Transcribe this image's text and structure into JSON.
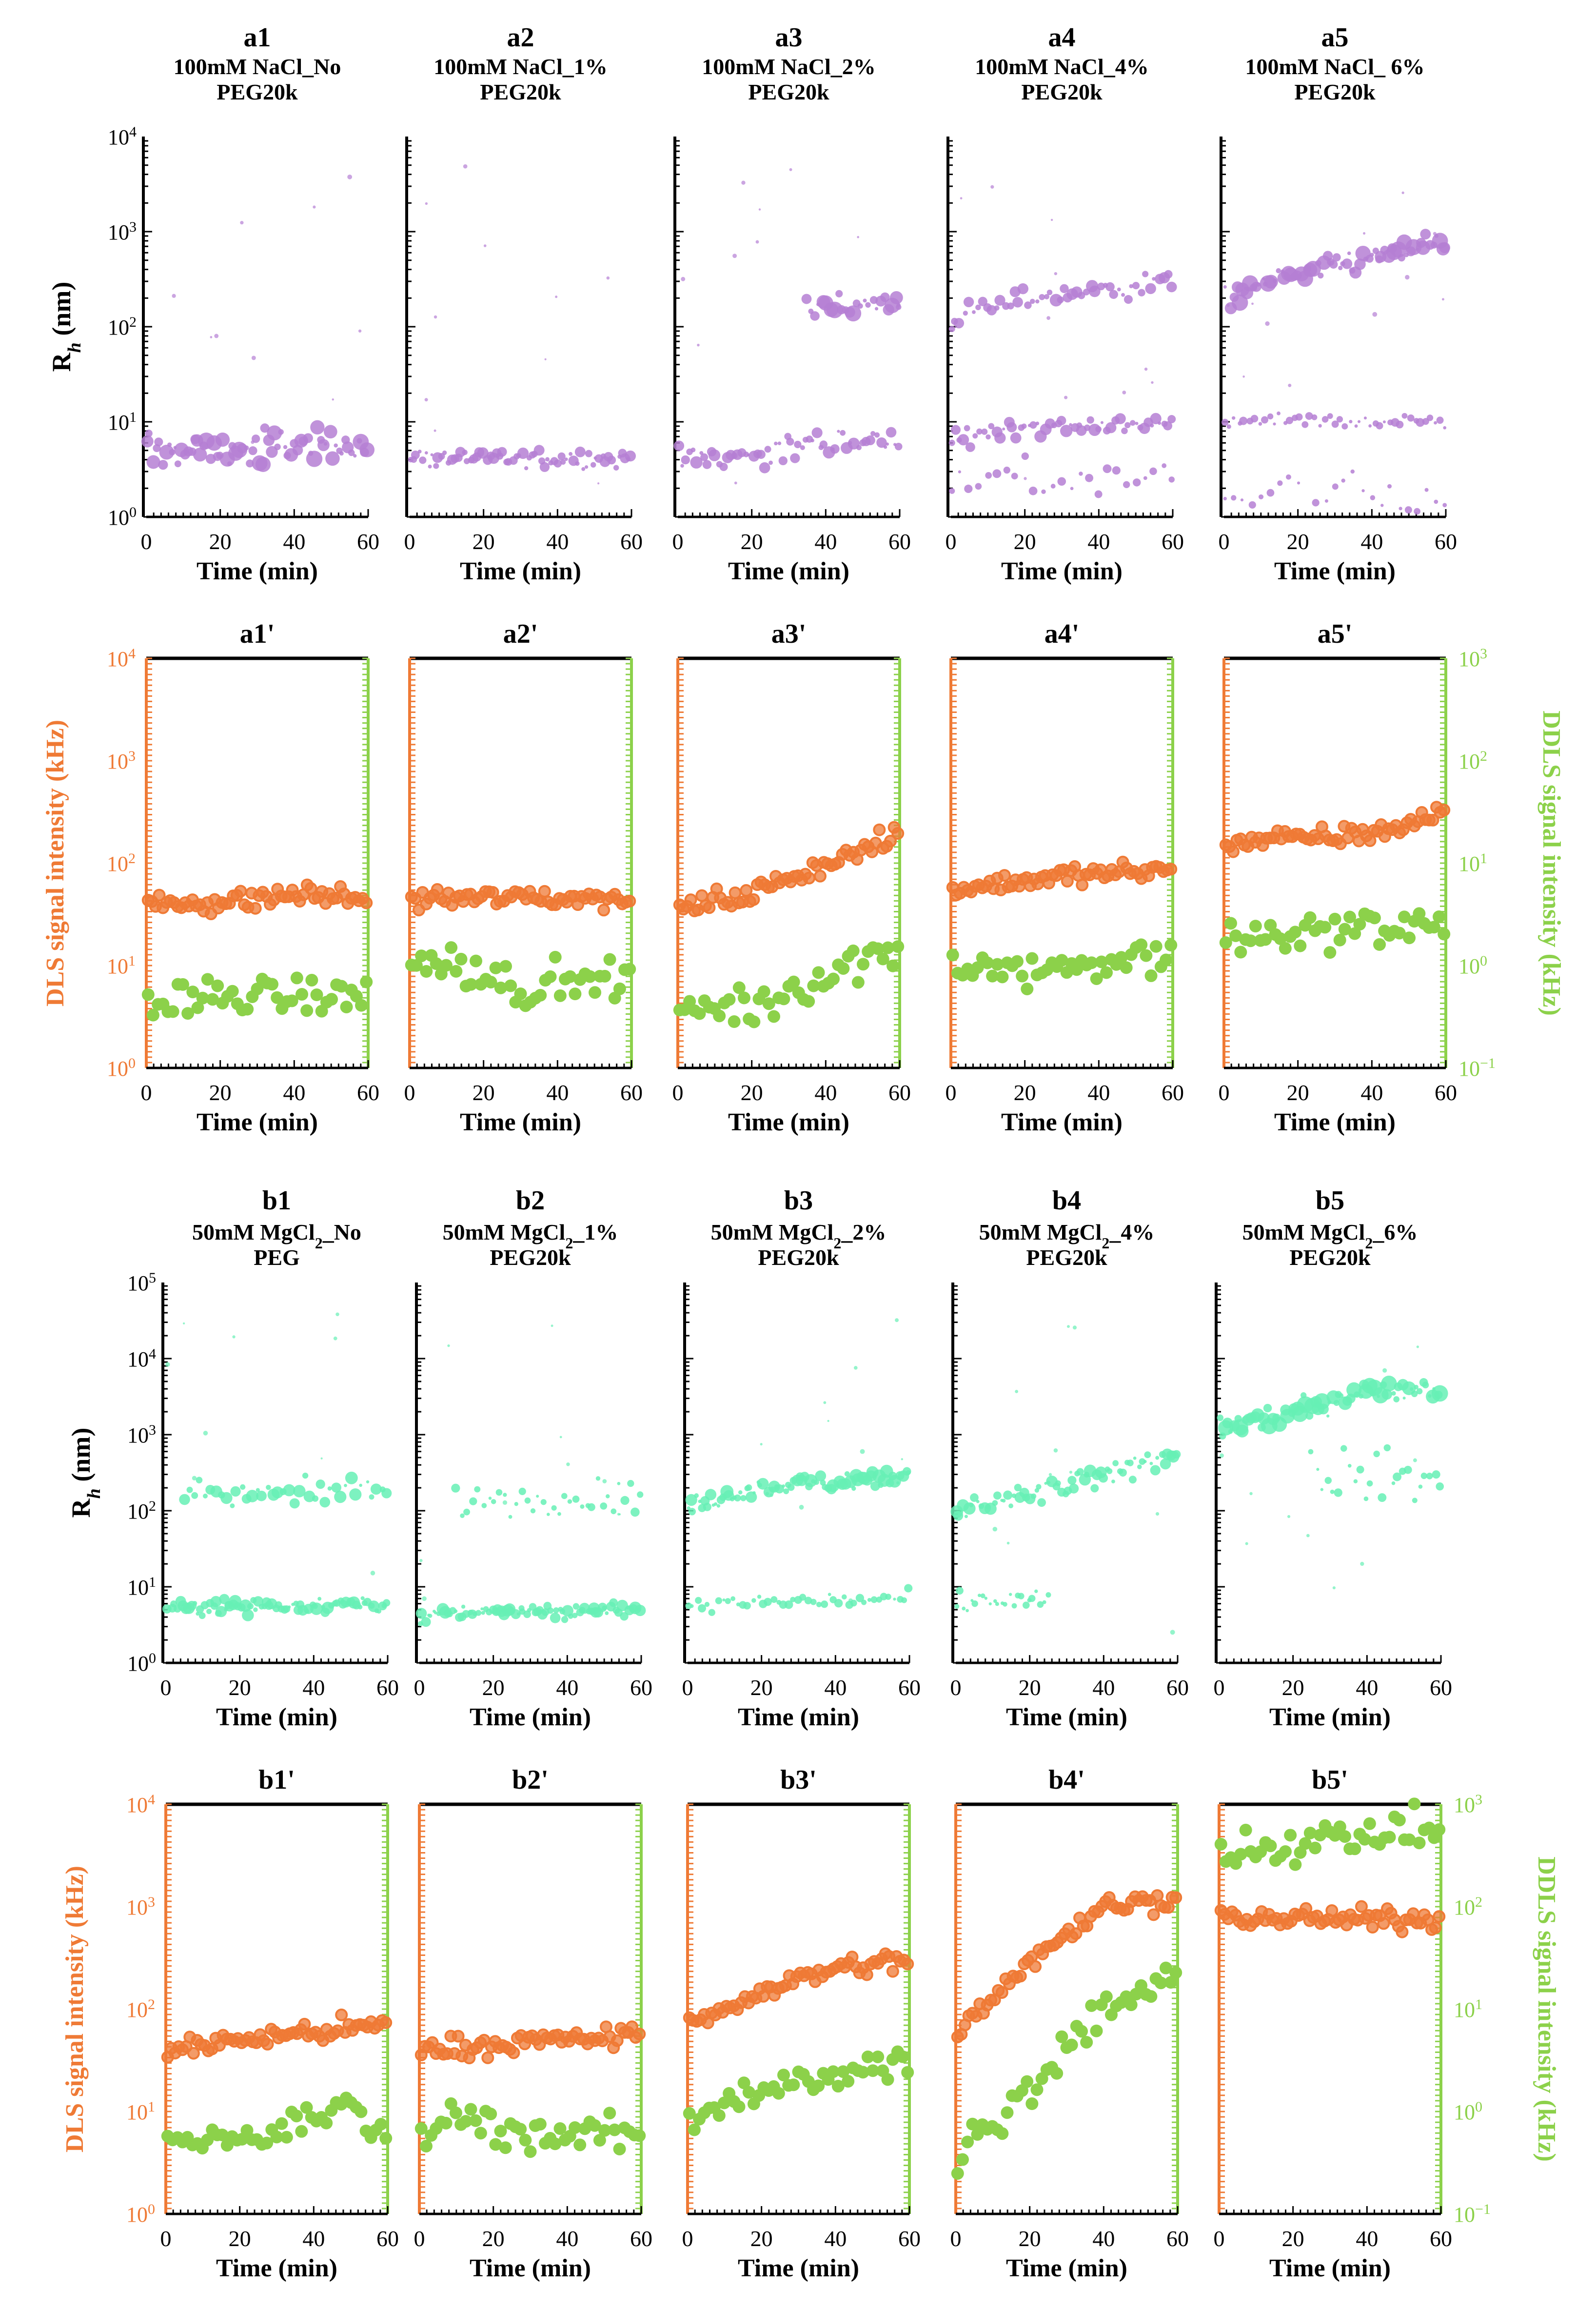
{
  "figure": {
    "x_tick_labels": [
      "0",
      "20",
      "40",
      "60"
    ],
    "x_axis_label": "Time (min)",
    "rh_axis_label_prefix": "R",
    "rh_axis_label_sub": "h",
    "rh_axis_label_suffix": " (nm)",
    "dls_axis_label": "DLS signal intensity (kHz)",
    "ddls_axis_label": "DDLS signal intensity (kHz)"
  },
  "colors": {
    "rh_a": "#b57fd4",
    "rh_b": "#66f0b5",
    "dls": "#ef7a35",
    "ddls": "#8cd14a",
    "axis": "#000000"
  },
  "chart_data": [
    {
      "id": "a1",
      "type": "scatter",
      "series_kind": "rh_a",
      "panel_label": "a1",
      "title_lines": [
        "100mM NaCl_No",
        "PEG20k"
      ],
      "title_sub": null,
      "xlabel": "Time (min)",
      "ylabel": "Rh (nm)",
      "xlim": [
        0,
        60
      ],
      "ylim": [
        1,
        10000
      ],
      "yscale": "log",
      "series": [
        {
          "name": "Rh",
          "trend": [
            [
              0,
              5
            ],
            [
              30,
              5
            ],
            [
              45,
              6
            ],
            [
              60,
              5.5
            ]
          ],
          "scatter": 0.09,
          "cluster_points": 70,
          "max_size": 14
        }
      ]
    },
    {
      "id": "a2",
      "type": "scatter",
      "series_kind": "rh_a",
      "panel_label": "a2",
      "title_lines": [
        "100mM NaCl_1%",
        "PEG20k"
      ],
      "title_sub": null,
      "xlabel": "Time (min)",
      "ylabel": "Rh (nm)",
      "xlim": [
        0,
        60
      ],
      "ylim": [
        1,
        10000
      ],
      "yscale": "log",
      "series": [
        {
          "name": "Rh",
          "trend": [
            [
              0,
              4.2
            ],
            [
              60,
              4.1
            ]
          ],
          "scatter": 0.05,
          "cluster_points": 70,
          "max_size": 9
        }
      ]
    },
    {
      "id": "a3",
      "type": "scatter",
      "series_kind": "rh_a",
      "panel_label": "a3",
      "title_lines": [
        "100mM NaCl_2%",
        "PEG20k"
      ],
      "title_sub": null,
      "xlabel": "Time (min)",
      "ylabel": "Rh (nm)",
      "xlim": [
        0,
        60
      ],
      "ylim": [
        1,
        10000
      ],
      "yscale": "log",
      "series": [
        {
          "name": "Rh small",
          "trend": [
            [
              0,
              4
            ],
            [
              20,
              4.5
            ],
            [
              40,
              6
            ],
            [
              60,
              6.5
            ]
          ],
          "scatter": 0.07,
          "cluster_points": 60,
          "max_size": 10
        },
        {
          "name": "Rh large",
          "trend": [
            [
              35,
              170
            ],
            [
              45,
              160
            ],
            [
              60,
              170
            ]
          ],
          "scatter": 0.07,
          "cluster_points": 25,
          "max_size": 14
        }
      ]
    },
    {
      "id": "a4",
      "type": "scatter",
      "series_kind": "rh_a",
      "panel_label": "a4",
      "title_lines": [
        "100mM NaCl_4%",
        "PEG20k"
      ],
      "title_sub": null,
      "xlabel": "Time (min)",
      "ylabel": "Rh (nm)",
      "xlim": [
        0,
        60
      ],
      "ylim": [
        1,
        10000
      ],
      "yscale": "log",
      "series": [
        {
          "name": "Rh small",
          "trend": [
            [
              0,
              6
            ],
            [
              15,
              9
            ],
            [
              60,
              9.5
            ]
          ],
          "scatter": 0.05,
          "cluster_points": 55,
          "max_size": 10
        },
        {
          "name": "Rh large",
          "trend": [
            [
              0,
              120
            ],
            [
              20,
              200
            ],
            [
              60,
              300
            ]
          ],
          "scatter": 0.06,
          "cluster_points": 50,
          "max_size": 10
        },
        {
          "name": "Rh smallest",
          "trend": [
            [
              0,
              2.5
            ],
            [
              60,
              2.5
            ]
          ],
          "scatter": 0.1,
          "cluster_points": 25,
          "max_size": 6
        }
      ]
    },
    {
      "id": "a5",
      "type": "scatter",
      "series_kind": "rh_a",
      "panel_label": "a5",
      "title_lines": [
        "100mM NaCl_ 6%",
        "PEG20k"
      ],
      "title_sub": null,
      "xlabel": "Time (min)",
      "ylabel": "Rh (nm)",
      "xlim": [
        0,
        60
      ],
      "ylim": [
        1,
        10000
      ],
      "yscale": "log",
      "series": [
        {
          "name": "Rh large",
          "trend": [
            [
              0,
              200
            ],
            [
              20,
              350
            ],
            [
              60,
              800
            ]
          ],
          "scatter": 0.06,
          "cluster_points": 70,
          "max_size": 14
        },
        {
          "name": "Rh small",
          "trend": [
            [
              0,
              10
            ],
            [
              60,
              10
            ]
          ],
          "scatter": 0.04,
          "cluster_points": 45,
          "max_size": 6
        },
        {
          "name": "Rh smallest",
          "trend": [
            [
              0,
              1.6
            ],
            [
              60,
              1.8
            ]
          ],
          "scatter": 0.15,
          "cluster_points": 25,
          "max_size": 5
        }
      ]
    },
    {
      "id": "a1p",
      "type": "scatter",
      "series_kind": "intensity",
      "panel_label": "a1'",
      "xlabel": "Time (min)",
      "xlim": [
        0,
        60
      ],
      "ylim_left": [
        1,
        10000
      ],
      "ylim_right": [
        0.1,
        1000
      ],
      "yscale": "log",
      "dls": [
        [
          0,
          40
        ],
        [
          25,
          42
        ],
        [
          40,
          50
        ],
        [
          60,
          45
        ]
      ],
      "ddls": [
        [
          0,
          0.4
        ],
        [
          20,
          0.5
        ],
        [
          40,
          0.5
        ],
        [
          60,
          0.5
        ]
      ]
    },
    {
      "id": "a2p",
      "type": "scatter",
      "series_kind": "intensity",
      "panel_label": "a2'",
      "xlabel": "Time (min)",
      "xlim": [
        0,
        60
      ],
      "ylim_left": [
        1,
        10000
      ],
      "ylim_right": [
        0.1,
        1000
      ],
      "yscale": "log",
      "dls": [
        [
          0,
          45
        ],
        [
          30,
          46
        ],
        [
          60,
          45
        ]
      ],
      "ddls": [
        [
          0,
          0.9
        ],
        [
          10,
          1.2
        ],
        [
          30,
          0.6
        ],
        [
          60,
          0.8
        ]
      ]
    },
    {
      "id": "a3p",
      "type": "scatter",
      "series_kind": "intensity",
      "panel_label": "a3'",
      "xlabel": "Time (min)",
      "xlim": [
        0,
        60
      ],
      "ylim_left": [
        1,
        10000
      ],
      "ylim_right": [
        0.1,
        1000
      ],
      "yscale": "log",
      "dls": [
        [
          0,
          35
        ],
        [
          20,
          50
        ],
        [
          40,
          100
        ],
        [
          60,
          180
        ]
      ],
      "ddls": [
        [
          0,
          0.4
        ],
        [
          20,
          0.4
        ],
        [
          40,
          0.8
        ],
        [
          60,
          1.6
        ]
      ]
    },
    {
      "id": "a4p",
      "type": "scatter",
      "series_kind": "intensity",
      "panel_label": "a4'",
      "xlabel": "Time (min)",
      "xlim": [
        0,
        60
      ],
      "ylim_left": [
        1,
        10000
      ],
      "ylim_right": [
        0.1,
        1000
      ],
      "yscale": "log",
      "dls": [
        [
          0,
          55
        ],
        [
          30,
          75
        ],
        [
          60,
          85
        ]
      ],
      "ddls": [
        [
          0,
          1.0
        ],
        [
          30,
          0.9
        ],
        [
          60,
          1.3
        ]
      ]
    },
    {
      "id": "a5p",
      "type": "scatter",
      "series_kind": "intensity",
      "panel_label": "a5'",
      "xlabel": "Time (min)",
      "xlim": [
        0,
        60
      ],
      "ylim_left": [
        1,
        10000
      ],
      "ylim_right": [
        0.1,
        1000
      ],
      "yscale": "log",
      "dls": [
        [
          0,
          160
        ],
        [
          30,
          180
        ],
        [
          50,
          230
        ],
        [
          60,
          350
        ]
      ],
      "ddls": [
        [
          0,
          1.8
        ],
        [
          30,
          2.3
        ],
        [
          60,
          2.5
        ]
      ]
    },
    {
      "id": "b1",
      "type": "scatter",
      "series_kind": "rh_b",
      "panel_label": "b1",
      "title_lines": [
        "50mM MgCl",
        "PEG"
      ],
      "title_sub": {
        "line": 0,
        "sub": "2",
        "after": "_No"
      },
      "xlabel": "Time (min)",
      "ylabel": "Rh (nm)",
      "xlim": [
        0,
        60
      ],
      "ylim": [
        1,
        100000
      ],
      "yscale": "log",
      "series": [
        {
          "name": "Rh small",
          "trend": [
            [
              0,
              5.5
            ],
            [
              60,
              6
            ]
          ],
          "scatter": 0.05,
          "cluster_points": 80,
          "max_size": 10
        },
        {
          "name": "Rh large",
          "trend": [
            [
              5,
              150
            ],
            [
              60,
              200
            ]
          ],
          "scatter": 0.08,
          "cluster_points": 40,
          "max_size": 10
        }
      ]
    },
    {
      "id": "b2",
      "type": "scatter",
      "series_kind": "rh_b",
      "panel_label": "b2",
      "title_lines": [
        "50mM MgCl",
        "PEG20k"
      ],
      "title_sub": {
        "line": 0,
        "sub": "2",
        "after": "_1%"
      },
      "xlabel": "Time (min)",
      "ylabel": "Rh (nm)",
      "xlim": [
        0,
        60
      ],
      "ylim": [
        1,
        100000
      ],
      "yscale": "log",
      "series": [
        {
          "name": "Rh small",
          "trend": [
            [
              0,
              4.5
            ],
            [
              60,
              5
            ]
          ],
          "scatter": 0.05,
          "cluster_points": 80,
          "max_size": 10
        },
        {
          "name": "Rh large",
          "trend": [
            [
              10,
              130
            ],
            [
              60,
              160
            ]
          ],
          "scatter": 0.1,
          "cluster_points": 35,
          "max_size": 7
        }
      ]
    },
    {
      "id": "b3",
      "type": "scatter",
      "series_kind": "rh_b",
      "panel_label": "b3",
      "title_lines": [
        "50mM MgCl",
        "PEG20k"
      ],
      "title_sub": {
        "line": 0,
        "sub": "2",
        "after": "_2%"
      },
      "xlabel": "Time (min)",
      "ylabel": "Rh (nm)",
      "xlim": [
        0,
        60
      ],
      "ylim": [
        1,
        100000
      ],
      "yscale": "log",
      "series": [
        {
          "name": "Rh large",
          "trend": [
            [
              0,
              110
            ],
            [
              20,
              200
            ],
            [
              60,
              300
            ]
          ],
          "scatter": 0.06,
          "cluster_points": 80,
          "max_size": 11
        },
        {
          "name": "Rh small",
          "trend": [
            [
              0,
              6
            ],
            [
              60,
              7
            ]
          ],
          "scatter": 0.05,
          "cluster_points": 45,
          "max_size": 6
        }
      ]
    },
    {
      "id": "b4",
      "type": "scatter",
      "series_kind": "rh_b",
      "panel_label": "b4",
      "title_lines": [
        "50mM MgCl",
        "PEG20k"
      ],
      "title_sub": {
        "line": 0,
        "sub": "2",
        "after": "_4%"
      },
      "xlabel": "Time (min)",
      "ylabel": "Rh (nm)",
      "xlim": [
        0,
        60
      ],
      "ylim": [
        1,
        100000
      ],
      "yscale": "log",
      "series": [
        {
          "name": "Rh large",
          "trend": [
            [
              0,
              100
            ],
            [
              30,
              200
            ],
            [
              60,
              600
            ]
          ],
          "scatter": 0.07,
          "cluster_points": 70,
          "max_size": 10
        },
        {
          "name": "Rh small",
          "trend": [
            [
              0,
              6
            ],
            [
              25,
              6.5
            ]
          ],
          "scatter": 0.06,
          "cluster_points": 25,
          "max_size": 5
        }
      ]
    },
    {
      "id": "b5",
      "type": "scatter",
      "series_kind": "rh_b",
      "panel_label": "b5",
      "title_lines": [
        "50mM MgCl",
        "PEG20k"
      ],
      "title_sub": {
        "line": 0,
        "sub": "2",
        "after": "_6%"
      },
      "xlabel": "Time (min)",
      "ylabel": "Rh (nm)",
      "xlim": [
        0,
        60
      ],
      "ylim": [
        1,
        100000
      ],
      "yscale": "log",
      "series": [
        {
          "name": "Rh large",
          "trend": [
            [
              0,
              1200
            ],
            [
              20,
              2000
            ],
            [
              40,
              4000
            ],
            [
              60,
              4000
            ]
          ],
          "scatter": 0.08,
          "cluster_points": 75,
          "max_size": 14
        },
        {
          "name": "Rh mid",
          "trend": [
            [
              25,
              300
            ],
            [
              60,
              300
            ]
          ],
          "scatter": 0.2,
          "cluster_points": 25,
          "max_size": 6
        }
      ]
    },
    {
      "id": "b1p",
      "type": "scatter",
      "series_kind": "intensity",
      "panel_label": "b1'",
      "xlabel": "Time (min)",
      "xlim": [
        0,
        60
      ],
      "ylim_left": [
        1,
        10000
      ],
      "ylim_right": [
        0.1,
        1000
      ],
      "yscale": "log",
      "dls": [
        [
          0,
          40
        ],
        [
          30,
          55
        ],
        [
          60,
          70
        ]
      ],
      "ddls": [
        [
          0,
          0.5
        ],
        [
          30,
          0.6
        ],
        [
          50,
          1.2
        ],
        [
          60,
          0.6
        ]
      ]
    },
    {
      "id": "b2p",
      "type": "scatter",
      "series_kind": "intensity",
      "panel_label": "b2'",
      "xlabel": "Time (min)",
      "xlim": [
        0,
        60
      ],
      "ylim_left": [
        1,
        10000
      ],
      "ylim_right": [
        0.1,
        1000
      ],
      "yscale": "log",
      "dls": [
        [
          0,
          40
        ],
        [
          30,
          48
        ],
        [
          60,
          55
        ]
      ],
      "ddls": [
        [
          0,
          0.6
        ],
        [
          10,
          0.9
        ],
        [
          30,
          0.6
        ],
        [
          60,
          0.6
        ]
      ]
    },
    {
      "id": "b3p",
      "type": "scatter",
      "series_kind": "intensity",
      "panel_label": "b3'",
      "xlabel": "Time (min)",
      "xlim": [
        0,
        60
      ],
      "ylim_left": [
        1,
        10000
      ],
      "ylim_right": [
        0.1,
        1000
      ],
      "yscale": "log",
      "dls": [
        [
          0,
          70
        ],
        [
          20,
          150
        ],
        [
          40,
          250
        ],
        [
          60,
          300
        ]
      ],
      "ddls": [
        [
          0,
          0.8
        ],
        [
          20,
          1.5
        ],
        [
          40,
          2.5
        ],
        [
          60,
          3
        ]
      ]
    },
    {
      "id": "b4p",
      "type": "scatter",
      "series_kind": "intensity",
      "panel_label": "b4'",
      "xlabel": "Time (min)",
      "xlim": [
        0,
        60
      ],
      "ylim_left": [
        1,
        10000
      ],
      "ylim_right": [
        0.1,
        1000
      ],
      "yscale": "log",
      "dls": [
        [
          0,
          60
        ],
        [
          20,
          300
        ],
        [
          40,
          1000
        ],
        [
          60,
          1200
        ]
      ],
      "ddls": [
        [
          0,
          0.4
        ],
        [
          20,
          1.5
        ],
        [
          40,
          10
        ],
        [
          60,
          20
        ]
      ]
    },
    {
      "id": "b5p",
      "type": "scatter",
      "series_kind": "intensity",
      "panel_label": "b5'",
      "xlabel": "Time (min)",
      "xlim": [
        0,
        60
      ],
      "ylim_left": [
        1,
        10000
      ],
      "ylim_right": [
        0.1,
        1000
      ],
      "yscale": "log",
      "dls": [
        [
          0,
          800
        ],
        [
          30,
          750
        ],
        [
          60,
          750
        ]
      ],
      "ddls": [
        [
          0,
          350
        ],
        [
          30,
          450
        ],
        [
          60,
          600
        ]
      ]
    }
  ]
}
